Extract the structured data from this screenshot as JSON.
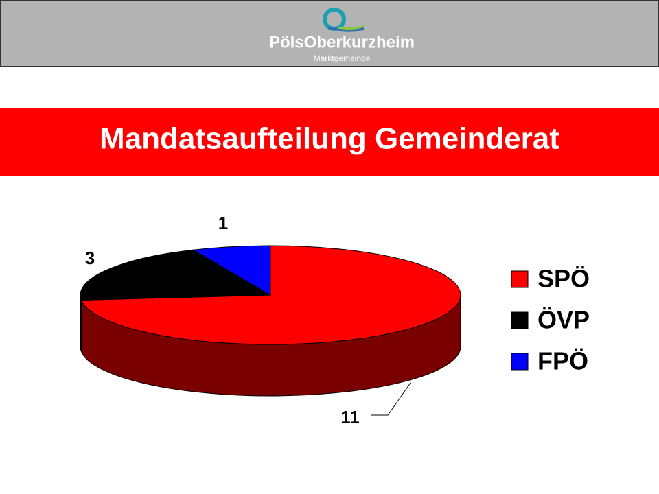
{
  "header": {
    "logo_title": "PölsOberkurzheim",
    "logo_subtitle": "Marktgemeinde"
  },
  "chart_data": {
    "type": "pie",
    "title": "Mandatsaufteilung Gemeinderat",
    "categories": [
      "SPÖ",
      "ÖVP",
      "FPÖ"
    ],
    "values": [
      11,
      3,
      1
    ],
    "colors": [
      "#ff0000",
      "#000000",
      "#0000ff"
    ],
    "legend": "right"
  }
}
